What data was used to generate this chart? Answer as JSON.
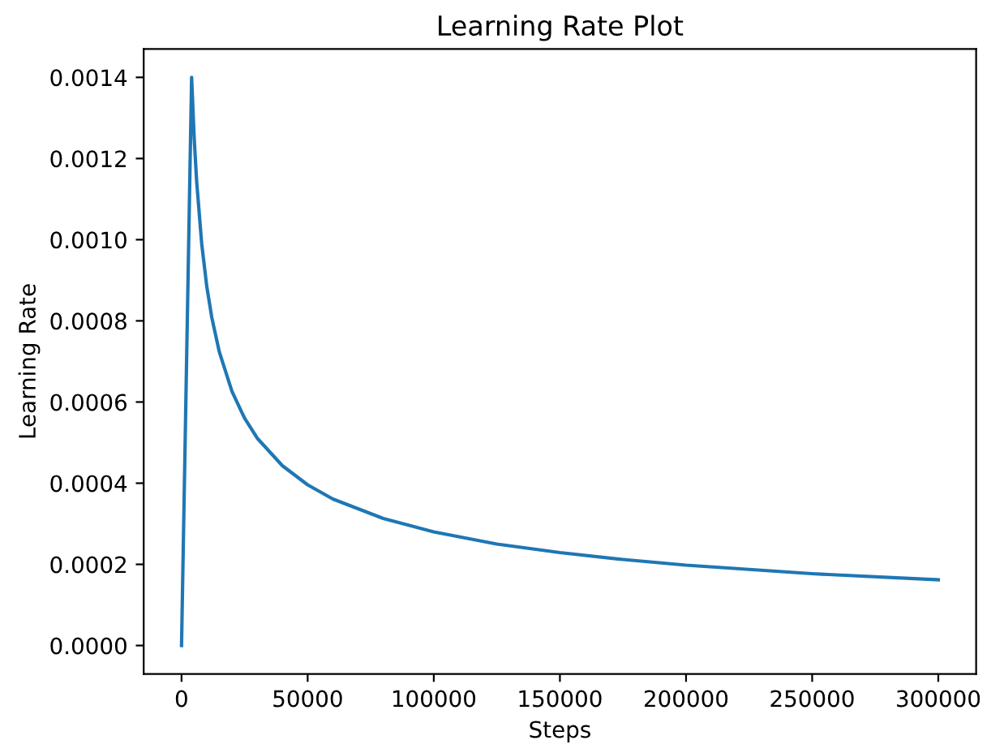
{
  "chart_data": {
    "type": "line",
    "title": "Learning Rate Plot",
    "xlabel": "Steps",
    "ylabel": "Learning Rate",
    "series": [
      {
        "color": "#1f77b4",
        "x": [
          0,
          4000,
          5000,
          6000,
          8000,
          10000,
          12000,
          15000,
          20000,
          25000,
          30000,
          40000,
          50000,
          60000,
          80000,
          100000,
          125000,
          150000,
          175000,
          200000,
          250000,
          300000
        ],
        "values": [
          0.0,
          0.0014,
          0.001252,
          0.001143,
          0.00099,
          0.000885,
          0.000808,
          0.000723,
          0.000626,
          0.00056,
          0.000511,
          0.000443,
          0.000396,
          0.000361,
          0.000313,
          0.00028,
          0.00025,
          0.000229,
          0.000212,
          0.000198,
          0.000177,
          0.000162
        ]
      }
    ],
    "xlim": [
      -15000,
      315000
    ],
    "ylim": [
      -7e-05,
      0.00147
    ],
    "xticks": [
      0,
      50000,
      100000,
      150000,
      200000,
      250000,
      300000
    ],
    "yticks": [
      {
        "value": 0,
        "label": "0.0000"
      },
      {
        "value": 0.0002,
        "label": "0.0002"
      },
      {
        "value": 0.0004,
        "label": "0.0004"
      },
      {
        "value": 0.0006,
        "label": "0.0006"
      },
      {
        "value": 0.0008,
        "label": "0.0008"
      },
      {
        "value": 0.001,
        "label": "0.0010"
      },
      {
        "value": 0.0012,
        "label": "0.0012"
      },
      {
        "value": 0.0014,
        "label": "0.0014"
      }
    ],
    "grid": false,
    "line_style": "solid"
  }
}
